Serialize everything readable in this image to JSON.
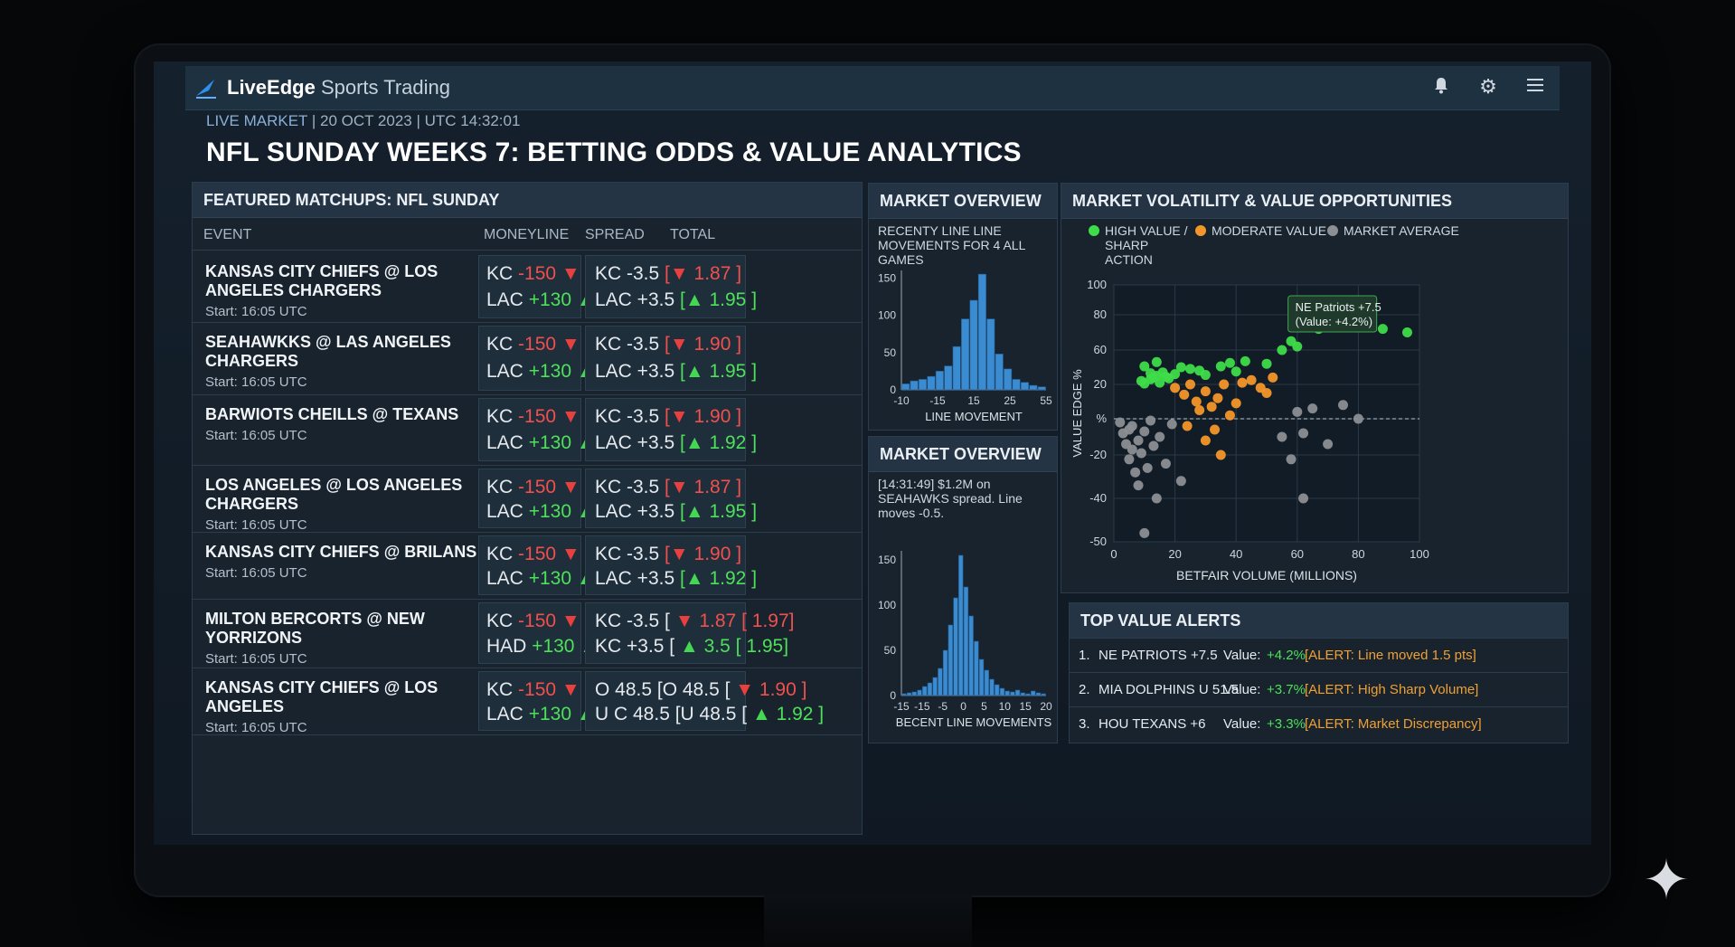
{
  "app": {
    "brand_bold": "LiveEdge",
    "brand_rest": "Sports Trading"
  },
  "icons": [
    "bell-icon",
    "gear-icon",
    "menu-icon"
  ],
  "header": {
    "live_tag": "LIVE MARKET",
    "datetime": " | 20 OCT 2023 | UTC 14:32:01",
    "title": "NFL SUNDAY WEEKS 7: BETTING ODDS & VALUE ANALYTICS"
  },
  "matchups": {
    "title": "FEATURED MATCHUPS: NFL SUNDAY",
    "columns": [
      "EVENT",
      "MONEYLINE",
      "SPREAD",
      "TOTAL"
    ],
    "rows": [
      {
        "event": "KANSAS CITY CHIEFS @ LOS ANGELES CHARGERS",
        "start": "Start: 16:05 UTC",
        "ml1_team": "KC",
        "ml1_val": "-150",
        "ml2_team": "LAC",
        "ml2_val": "+130",
        "sp1": "KC  -3.5",
        "sp1_bracket": "[",
        "sp1_odds": "1.87",
        "sp1_close": "]",
        "sp2": "LAC +3.5",
        "sp2_bracket": "[",
        "sp2_odds": "1.95",
        "sp2_close": "]"
      },
      {
        "event": "SEAHAWKKS @ LAS ANGELES CHARGERS",
        "start": "Start: 16:05 UTC",
        "ml1_team": "KC",
        "ml1_val": "-150",
        "ml2_team": "LAC",
        "ml2_val": "+130",
        "sp1": "KC  -3.5",
        "sp1_bracket": "[",
        "sp1_odds": "1.90",
        "sp1_close": "]",
        "sp2": "LAC +3.5",
        "sp2_bracket": "[",
        "sp2_odds": "1.95",
        "sp2_close": "]"
      },
      {
        "event": "BARWIOTS CHEILLS @ TEXANS",
        "start": "Start: 16:05 UTC",
        "ml1_team": "KC",
        "ml1_val": "-150",
        "ml2_team": "LAC",
        "ml2_val": "+130",
        "sp1": "KC  -3.5",
        "sp1_bracket": "[",
        "sp1_odds": "1.90",
        "sp1_close": "]",
        "sp2": "LAC +3.5",
        "sp2_bracket": "[",
        "sp2_odds": "1.92",
        "sp2_close": "]"
      },
      {
        "event": "LOS ANGELES @ LOS ANGELES CHARGERS",
        "start": "Start: 16:05 UTC",
        "ml1_team": "KC",
        "ml1_val": "-150",
        "ml2_team": "LAC",
        "ml2_val": "+130",
        "sp1": "KC  -3.5",
        "sp1_bracket": "[",
        "sp1_odds": "1.87",
        "sp1_close": "]",
        "sp2": "LAC +3.5",
        "sp2_bracket": "[",
        "sp2_odds": "1.95",
        "sp2_close": "]"
      },
      {
        "event": "KANSAS CITY CHIEFS @ BRILANS",
        "start": "Start: 16:05 UTC",
        "ml1_team": "KC",
        "ml1_val": "-150",
        "ml2_team": "LAC",
        "ml2_val": "+130",
        "sp1": "KC  -3.5",
        "sp1_bracket": "[",
        "sp1_odds": "1.90",
        "sp1_close": "]",
        "sp2": "LAC +3.5",
        "sp2_bracket": "[",
        "sp2_odds": "1.92",
        "sp2_close": "]"
      },
      {
        "event": "MILTON BERCORTS @ NEW YORRIZONS",
        "start": "Start: 16:05 UTC",
        "ml1_team": "KC",
        "ml1_val": "-150",
        "ml2_team": "HAD",
        "ml2_val": "+130",
        "sp1": "KC -3.5 [",
        "sp1_bracket": "",
        "sp1_odds": "1.87 [",
        "sp1_close": "1.97]",
        "sp2": "KC +3.5 [",
        "sp2_bracket": "",
        "sp2_odds": "3.5 [",
        "sp2_close": "1.95]"
      },
      {
        "event": "KANSAS CITY CHIEFS @ LOS ANGELES",
        "start": "Start: 16:05 UTC",
        "ml1_team": "KC",
        "ml1_val": "-150",
        "ml2_team": "LAC",
        "ml2_val": "+130",
        "sp1": "O 48.5 [O 48.5 [",
        "sp1_bracket": "",
        "sp1_odds": "1.90",
        "sp1_close": "]",
        "sp2": "U C 48.5 [U 48.5 [",
        "sp2_bracket": "",
        "sp2_odds": "1.92",
        "sp2_close": "]"
      }
    ]
  },
  "overview1": {
    "title": "MARKET OVERVIEW",
    "subtitle": "RECENTY LINE LINE MOVEMENTS FOR 4 ALL GAMES",
    "xlabel": "LINE MOVEMENT"
  },
  "overview2": {
    "title": "MARKET OVERVIEW",
    "subtitle": "[14:31:49] $1.2M on SEAHAWKS spread. Line moves -0.5.",
    "xlabel": "BECENT LINE MOVEMENTS"
  },
  "volatility": {
    "title": "MARKET VOLATILITY & VALUE OPPORTUNITIES",
    "legend": [
      {
        "label": "HIGH VALUE / SHARP ACTION",
        "color": "#3fdc4a"
      },
      {
        "label": "MODERATE VALUE",
        "color": "#f5962a"
      },
      {
        "label": "MARKET AVERAGE",
        "color": "#8c8f93"
      }
    ],
    "xlabel": "BETFAIR VOLUME (MILLIONS)",
    "ylabel": "VALUE EDGE %",
    "callout_line1": "NE Patriots +7.5",
    "callout_line2": "(Value: +4.2%)"
  },
  "alerts": {
    "title": "TOP VALUE ALERTS",
    "items": [
      {
        "num": "1.",
        "name": "NE PATRIOTS +7.5",
        "value_label": "Value:",
        "value": "+4.2%",
        "alert": "[ALERT: Line moved 1.5 pts]"
      },
      {
        "num": "2.",
        "name": "MIA DOLPHINS U 51.5",
        "value_label": "Value:",
        "value": "+3.7%",
        "alert": "[ALERT: High Sharp Volume]"
      },
      {
        "num": "3.",
        "name": "HOU TEXANS +6",
        "value_label": "Value:",
        "value": "+3.3%",
        "alert": "[ALERT: Market Discrepancy]"
      }
    ]
  },
  "chart_data": [
    {
      "type": "bar",
      "title": "MARKET OVERVIEW",
      "xlabel": "LINE MOVEMENT",
      "ylabel": "",
      "x_ticks": [
        "-10",
        "-15",
        "15",
        "25",
        "55"
      ],
      "y_ticks": [
        0,
        50,
        100,
        150
      ],
      "ylim": [
        0,
        160
      ],
      "values": [
        8,
        12,
        14,
        18,
        25,
        32,
        58,
        95,
        120,
        155,
        95,
        48,
        28,
        14,
        10,
        6,
        4
      ]
    },
    {
      "type": "bar",
      "title": "MARKET OVERVIEW",
      "xlabel": "BECENT LINE MOVEMENTS",
      "ylabel": "",
      "x_ticks": [
        "-15",
        "-15",
        "-5",
        "0",
        "5",
        "10",
        "15",
        "20"
      ],
      "y_ticks": [
        0,
        50,
        100,
        150
      ],
      "ylim": [
        0,
        160
      ],
      "values": [
        2,
        3,
        4,
        6,
        10,
        14,
        20,
        30,
        50,
        78,
        108,
        155,
        120,
        88,
        60,
        40,
        28,
        18,
        12,
        8,
        5,
        4,
        6,
        3,
        2,
        5,
        3,
        2
      ]
    },
    {
      "type": "scatter",
      "title": "MARKET VOLATILITY & VALUE OPPORTUNITIES",
      "xlabel": "BETFAIR VOLUME (MILLIONS)",
      "ylabel": "VALUE EDGE %",
      "x_ticks": [
        0,
        20,
        40,
        60,
        80,
        100
      ],
      "y_ticks": [
        "100",
        "80",
        "60",
        "20",
        "%",
        "-20",
        "-40",
        "-50"
      ],
      "series": [
        {
          "name": "HIGH VALUE / SHARP ACTION",
          "color": "#3fdc4a",
          "points": [
            [
              9,
              24
            ],
            [
              10,
              21
            ],
            [
              12,
              26
            ],
            [
              13,
              28
            ],
            [
              14,
              30
            ],
            [
              15,
              22
            ],
            [
              16,
              34
            ],
            [
              17,
              29
            ],
            [
              18,
              27
            ],
            [
              20,
              32
            ],
            [
              22,
              40
            ],
            [
              25,
              38
            ],
            [
              28,
              36
            ],
            [
              30,
              31
            ],
            [
              35,
              41
            ],
            [
              38,
              45
            ],
            [
              40,
              35
            ],
            [
              43,
              47
            ],
            [
              50,
              44
            ],
            [
              55,
              60
            ],
            [
              58,
              65
            ],
            [
              60,
              62
            ],
            [
              67,
              72
            ],
            [
              70,
              75
            ],
            [
              72,
              78
            ],
            [
              74,
              76
            ],
            [
              88,
              72
            ],
            [
              96,
              70
            ],
            [
              12,
              33
            ],
            [
              14,
              46
            ],
            [
              10,
              41
            ]
          ]
        },
        {
          "name": "MODERATE VALUE",
          "color": "#f5962a",
          "points": [
            [
              20,
              18
            ],
            [
              23,
              14
            ],
            [
              25,
              20
            ],
            [
              27,
              10
            ],
            [
              28,
              5
            ],
            [
              30,
              16
            ],
            [
              32,
              7
            ],
            [
              34,
              12
            ],
            [
              36,
              20
            ],
            [
              38,
              2
            ],
            [
              40,
              9
            ],
            [
              42,
              22
            ],
            [
              45,
              25
            ],
            [
              48,
              18
            ],
            [
              50,
              15
            ],
            [
              52,
              28
            ],
            [
              30,
              -12
            ],
            [
              33,
              -6
            ],
            [
              35,
              -20
            ],
            [
              24,
              -4
            ]
          ]
        },
        {
          "name": "MARKET AVERAGE",
          "color": "#8c8f93",
          "points": [
            [
              2,
              -2
            ],
            [
              3,
              -8
            ],
            [
              4,
              -14
            ],
            [
              5,
              -6
            ],
            [
              5,
              -22
            ],
            [
              6,
              -17
            ],
            [
              6,
              -4
            ],
            [
              7,
              -28
            ],
            [
              8,
              -12
            ],
            [
              8,
              -34
            ],
            [
              9,
              -19
            ],
            [
              10,
              -7
            ],
            [
              11,
              -26
            ],
            [
              12,
              -1
            ],
            [
              13,
              -15
            ],
            [
              14,
              -40
            ],
            [
              15,
              -10
            ],
            [
              17,
              -24
            ],
            [
              19,
              -3
            ],
            [
              22,
              -32
            ],
            [
              10,
              -48
            ],
            [
              55,
              -10
            ],
            [
              60,
              4
            ],
            [
              62,
              -8
            ],
            [
              65,
              6
            ],
            [
              70,
              -14
            ],
            [
              75,
              8
            ],
            [
              80,
              0
            ],
            [
              58,
              -22
            ],
            [
              62,
              -40
            ]
          ]
        }
      ]
    }
  ]
}
